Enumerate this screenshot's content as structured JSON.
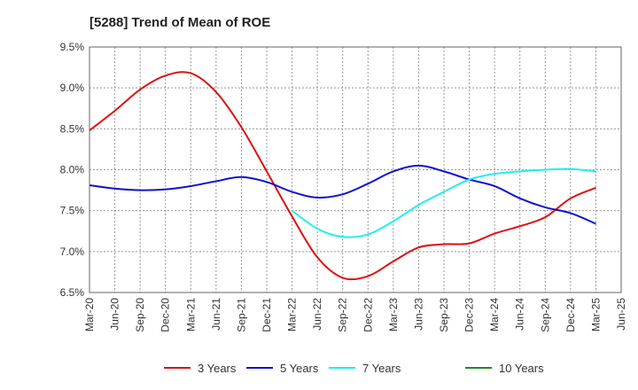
{
  "chart_data": {
    "type": "line",
    "title": "[5288]  Trend of Mean of ROE",
    "xlabel": "",
    "ylabel": "",
    "x": [
      "Mar-20",
      "Jun-20",
      "Sep-20",
      "Dec-20",
      "Mar-21",
      "Jun-21",
      "Sep-21",
      "Dec-21",
      "Mar-22",
      "Jun-22",
      "Sep-22",
      "Dec-22",
      "Mar-23",
      "Jun-23",
      "Sep-23",
      "Dec-23",
      "Mar-24",
      "Jun-24",
      "Sep-24",
      "Dec-24",
      "Mar-25",
      "Jun-25"
    ],
    "yticks": [
      "6.5%",
      "7.0%",
      "7.5%",
      "8.0%",
      "8.5%",
      "9.0%",
      "9.5%"
    ],
    "ylim": [
      6.5,
      9.5
    ],
    "grid": true,
    "legend_position": "bottom",
    "series": [
      {
        "name": "3 Years",
        "color": "#dd1111",
        "values": [
          8.48,
          8.72,
          8.98,
          9.15,
          9.18,
          8.95,
          8.52,
          7.98,
          7.43,
          6.93,
          6.68,
          6.7,
          6.88,
          7.05,
          7.09,
          7.1,
          7.22,
          7.31,
          7.42,
          7.65,
          7.78,
          null
        ]
      },
      {
        "name": "5 Years",
        "color": "#1111cc",
        "values": [
          7.81,
          7.77,
          7.75,
          7.76,
          7.8,
          7.86,
          7.91,
          7.85,
          7.73,
          7.66,
          7.7,
          7.83,
          7.98,
          8.05,
          7.98,
          7.88,
          7.8,
          7.65,
          7.54,
          7.47,
          7.34,
          null
        ]
      },
      {
        "name": "7 Years",
        "color": "#22eeee",
        "values": [
          null,
          null,
          null,
          null,
          null,
          null,
          null,
          null,
          7.5,
          7.28,
          7.18,
          7.21,
          7.37,
          7.57,
          7.73,
          7.88,
          7.95,
          7.98,
          8.0,
          8.01,
          7.98,
          null
        ]
      },
      {
        "name": "10 Years",
        "color": "#228822",
        "values": [
          null,
          null,
          null,
          null,
          null,
          null,
          null,
          null,
          null,
          null,
          null,
          null,
          null,
          null,
          null,
          null,
          null,
          null,
          null,
          null,
          null,
          null
        ]
      }
    ]
  }
}
